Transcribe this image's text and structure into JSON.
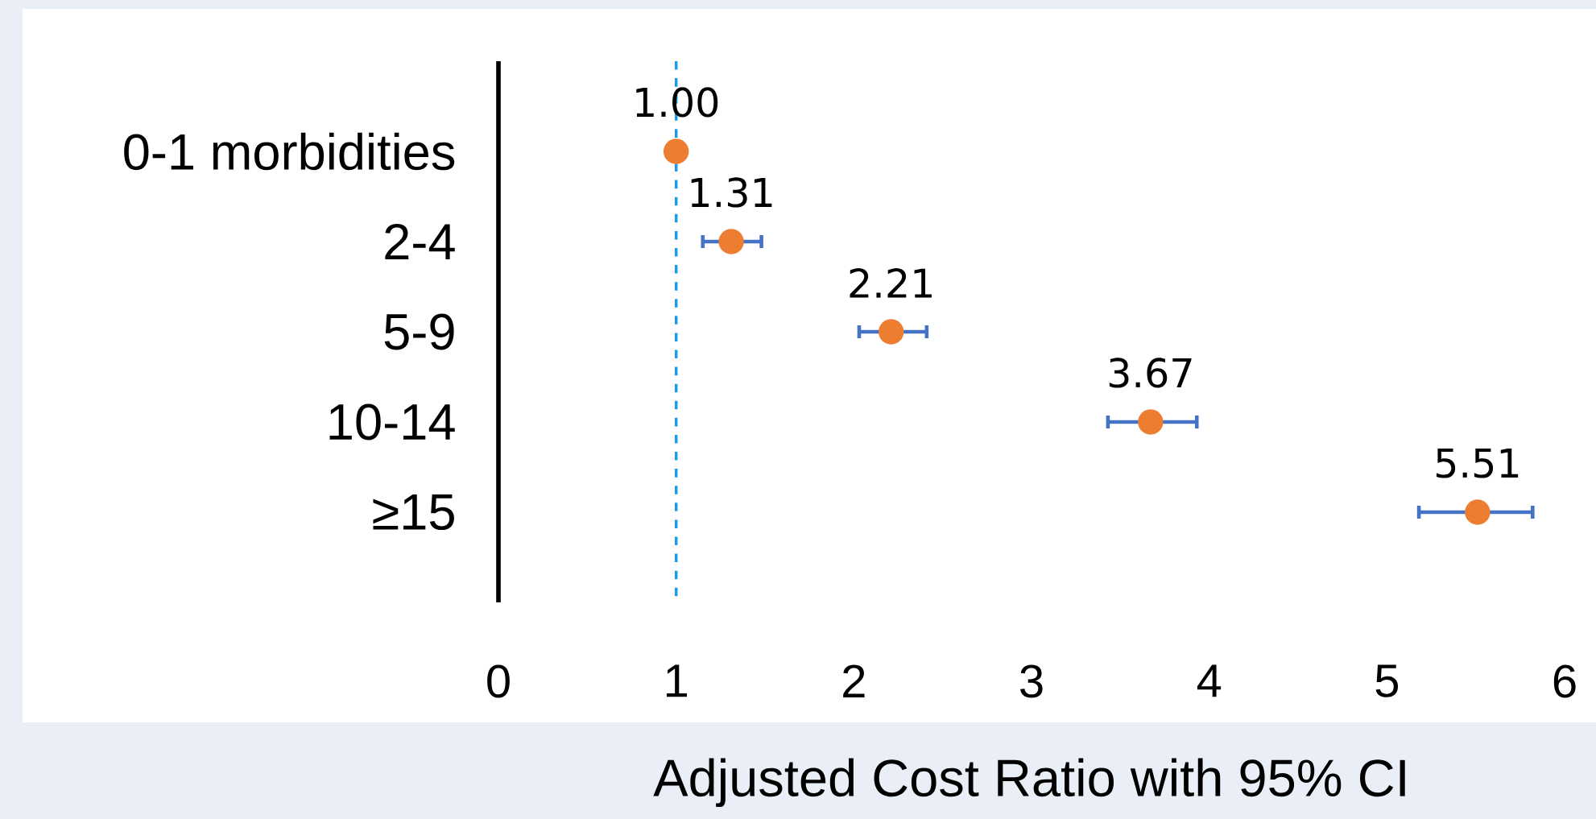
{
  "chart_data": {
    "type": "scatter",
    "orientation": "horizontal",
    "xlabel": "Adjusted Cost Ratio with 95% CI",
    "categories": [
      "0-1 morbidities",
      "2-4",
      "5-9",
      "10-14",
      "≥15"
    ],
    "values": [
      1.0,
      1.31,
      2.21,
      3.67,
      5.51
    ],
    "errors": [
      null,
      [
        1.15,
        1.48
      ],
      [
        2.03,
        2.41
      ],
      [
        3.43,
        3.93
      ],
      [
        5.18,
        5.82
      ]
    ],
    "value_labels": [
      "1.00",
      "1.31",
      "2.21",
      "3.67",
      "5.51"
    ],
    "color": "#ed7d31",
    "xlim": [
      0,
      6
    ],
    "xticks": [
      0,
      1,
      2,
      3,
      4,
      5,
      6
    ],
    "ref_lines": [
      {
        "axis": "x",
        "value": 1,
        "color": "#1e9be8",
        "line_style": "dashed"
      }
    ],
    "grid": false
  }
}
